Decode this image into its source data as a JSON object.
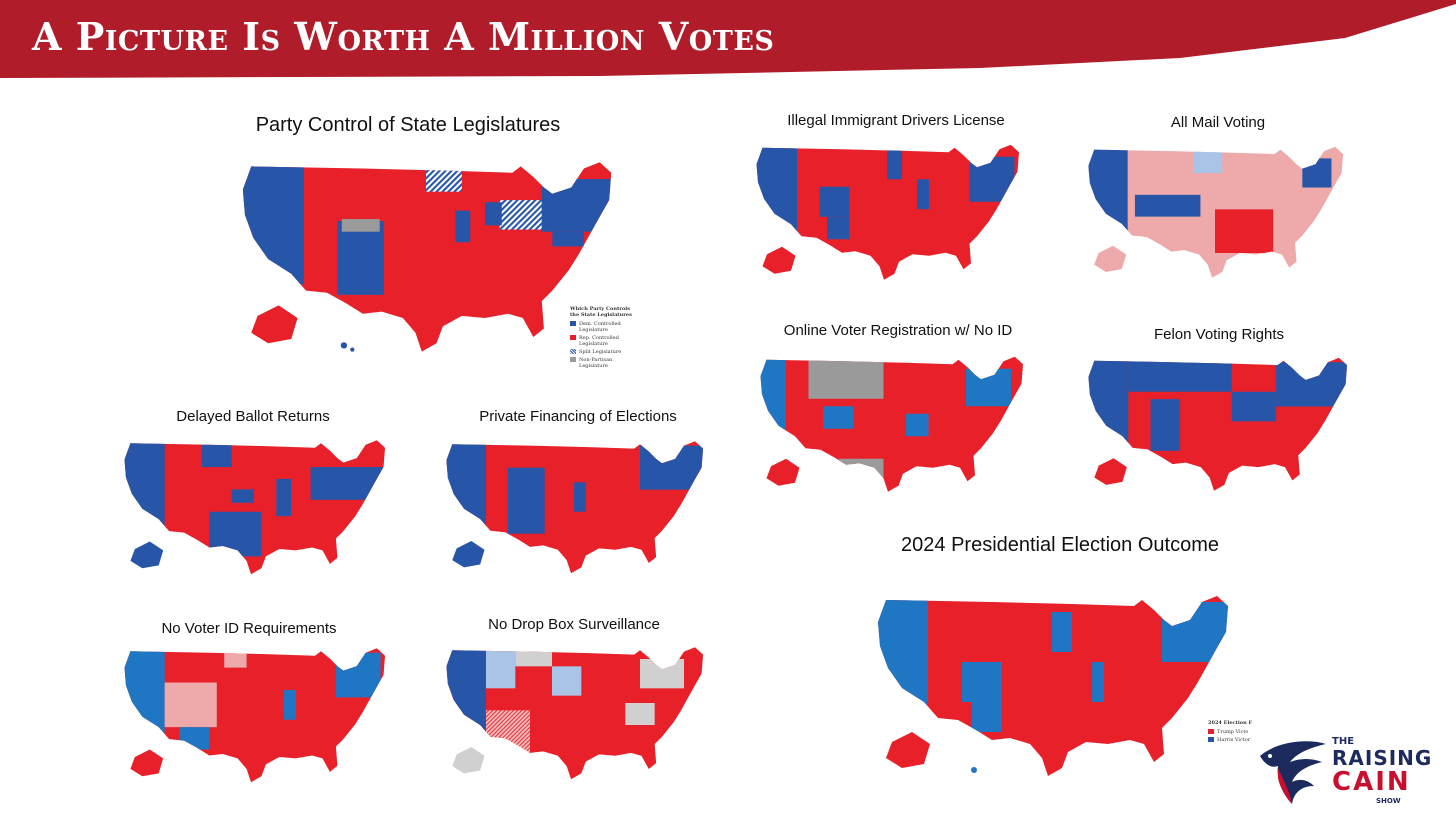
{
  "banner": {
    "title": "A Picture Is Worth A Million Votes"
  },
  "colors": {
    "banner": "#b11c2b",
    "dem_blue": "#2756a8",
    "light_blue": "#1f77c4",
    "rep_red": "#e8202a",
    "pink": "#eeaaaa",
    "gray": "#9a9a9a"
  },
  "panels": [
    {
      "id": "party-control",
      "title": "Party Control of State Legislatures",
      "legend": {
        "title": "Which Party Controls the State Legislatures",
        "items": [
          {
            "label": "Dem. Controlled Legislature",
            "color": "#2756a8"
          },
          {
            "label": "Rep. Controlled Legislature",
            "color": "#e8202a"
          },
          {
            "label": "Split Legislature",
            "color": "hatch"
          },
          {
            "label": "Non-Partisan Legislature",
            "color": "#9a9a9a"
          }
        ]
      }
    },
    {
      "id": "delayed-ballot",
      "title": "Delayed Ballot Returns"
    },
    {
      "id": "private-financing",
      "title": "Private Financing of Elections"
    },
    {
      "id": "no-voter-id",
      "title": "No Voter ID Requirements"
    },
    {
      "id": "no-drop-box",
      "title": "No Drop Box Surveillance"
    },
    {
      "id": "illegal-drivers",
      "title": "Illegal Immigrant Drivers License"
    },
    {
      "id": "all-mail",
      "title": "All Mail Voting"
    },
    {
      "id": "online-registration",
      "title": "Online Voter Registration w/ No ID"
    },
    {
      "id": "felon-voting",
      "title": "Felon Voting Rights"
    },
    {
      "id": "presidential-2024",
      "title": "2024 Presidential Election Outcome",
      "legend": {
        "title": "2024 Election F",
        "items": [
          {
            "label": "Trump Victo",
            "color": "#e8202a"
          },
          {
            "label": "Harris Victor",
            "color": "#2756a8"
          }
        ]
      }
    }
  ],
  "logo": {
    "the": "THE",
    "raising": "RAISING",
    "cain": "CAIN",
    "show": "SHOW"
  }
}
